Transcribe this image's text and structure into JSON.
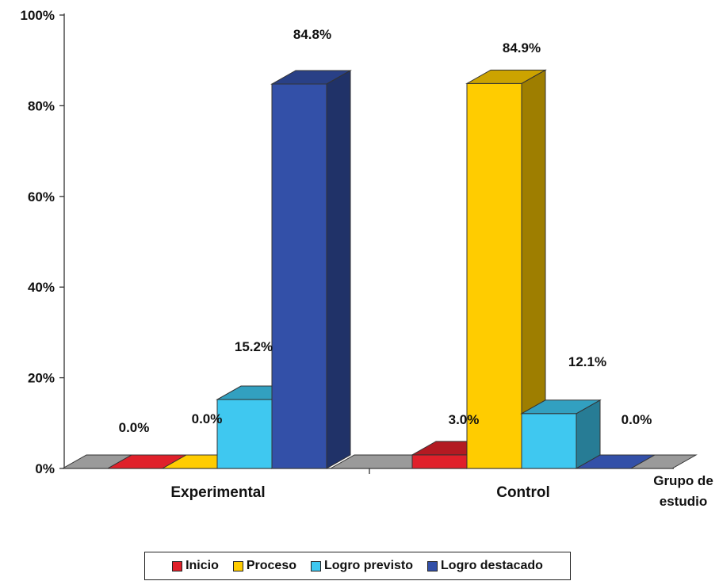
{
  "chart_data": {
    "type": "bar",
    "categories": [
      "Experimental",
      "Control"
    ],
    "series": [
      {
        "name": "Inicio",
        "values": [
          0.0,
          3.0
        ],
        "labels": [
          "0.0%",
          "3.0%"
        ],
        "color": "#E0202A"
      },
      {
        "name": "Proceso",
        "values": [
          0.0,
          84.9
        ],
        "labels": [
          "0.0%",
          "84.9%"
        ],
        "color": "#FFCC00"
      },
      {
        "name": "Logro previsto",
        "values": [
          15.2,
          12.1
        ],
        "labels": [
          "15.2%",
          "12.1%"
        ],
        "color": "#3FC8F0"
      },
      {
        "name": "Logro destacado",
        "values": [
          84.8,
          0.0
        ],
        "labels": [
          "84.8%",
          "0.0%"
        ],
        "color": "#3350A8"
      }
    ],
    "yticks": [
      "0%",
      "20%",
      "40%",
      "60%",
      "80%",
      "100%"
    ],
    "ylim": [
      0,
      100
    ],
    "xlabel": "Grupo de estudio",
    "xlabel_lines": [
      "Grupo de",
      "estudio"
    ],
    "legend_position": "bottom",
    "grid": false
  }
}
